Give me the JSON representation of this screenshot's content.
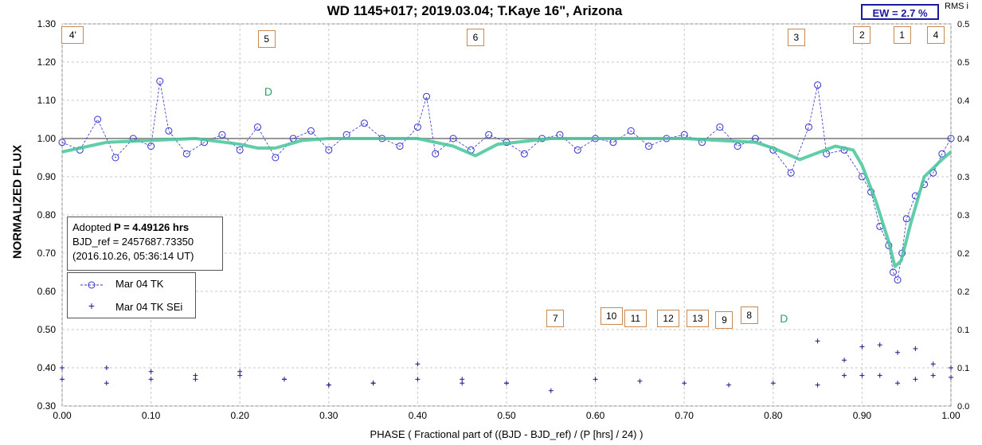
{
  "chart_data": {
    "type": "scatter",
    "title": "WD 1145+017; 2019.03.04; T.Kaye 16\", Arizona",
    "xlabel": "PHASE ( Fractional part of ((BJD - BJD_ref) / (P [hrs] / 24) )",
    "ylabel": "NORMALIZED FLUX",
    "xlim": [
      0.0,
      1.0
    ],
    "ylim": [
      0.3,
      1.3
    ],
    "y2label": "RMS i",
    "y2lim": [
      0.0,
      0.5
    ],
    "x_ticks": [
      "0.00",
      "0.10",
      "0.20",
      "0.30",
      "0.40",
      "0.50",
      "0.60",
      "0.70",
      "0.80",
      "0.90",
      "1.00"
    ],
    "y_ticks": [
      "0.30",
      "0.40",
      "0.50",
      "0.60",
      "0.70",
      "0.80",
      "0.90",
      "1.00",
      "1.10",
      "1.20",
      "1.30"
    ],
    "y2_ticks": [
      "0.0",
      "0.1",
      "0.1",
      "0.2",
      "0.2",
      "0.3",
      "0.3",
      "0.4",
      "0.4",
      "0.5",
      "0.5"
    ],
    "grid": true,
    "series": [
      {
        "name": "Mar 04 TK",
        "marker": "circle",
        "color": "#3333cc",
        "x": [
          0.0,
          0.02,
          0.04,
          0.06,
          0.08,
          0.1,
          0.11,
          0.12,
          0.14,
          0.16,
          0.18,
          0.2,
          0.22,
          0.24,
          0.26,
          0.28,
          0.3,
          0.32,
          0.34,
          0.36,
          0.38,
          0.4,
          0.41,
          0.42,
          0.44,
          0.46,
          0.48,
          0.5,
          0.52,
          0.54,
          0.56,
          0.58,
          0.6,
          0.62,
          0.64,
          0.66,
          0.68,
          0.7,
          0.72,
          0.74,
          0.76,
          0.78,
          0.8,
          0.82,
          0.84,
          0.85,
          0.86,
          0.88,
          0.9,
          0.91,
          0.92,
          0.93,
          0.935,
          0.94,
          0.945,
          0.95,
          0.96,
          0.97,
          0.98,
          0.99,
          1.0
        ],
        "y": [
          0.99,
          0.97,
          1.05,
          0.95,
          1.0,
          0.98,
          1.15,
          1.02,
          0.96,
          0.99,
          1.01,
          0.97,
          1.03,
          0.95,
          1.0,
          1.02,
          0.97,
          1.01,
          1.04,
          1.0,
          0.98,
          1.03,
          1.11,
          0.96,
          1.0,
          0.97,
          1.01,
          0.99,
          0.96,
          1.0,
          1.01,
          0.97,
          1.0,
          0.99,
          1.02,
          0.98,
          1.0,
          1.01,
          0.99,
          1.03,
          0.98,
          1.0,
          0.97,
          0.91,
          1.03,
          1.14,
          0.96,
          0.97,
          0.9,
          0.86,
          0.77,
          0.72,
          0.65,
          0.63,
          0.7,
          0.79,
          0.85,
          0.88,
          0.91,
          0.96,
          1.0
        ]
      },
      {
        "name": "Mar 04 TK SEi",
        "marker": "plus",
        "color": "#1a1a80",
        "x": [
          0.0,
          0.05,
          0.1,
          0.15,
          0.2,
          0.25,
          0.3,
          0.35,
          0.4,
          0.45,
          0.5,
          0.55,
          0.6,
          0.65,
          0.7,
          0.75,
          0.8,
          0.85,
          0.88,
          0.9,
          0.92,
          0.94,
          0.96,
          0.98,
          1.0
        ],
        "y": [
          0.37,
          0.36,
          0.37,
          0.37,
          0.38,
          0.37,
          0.355,
          0.36,
          0.37,
          0.36,
          0.36,
          0.34,
          0.37,
          0.365,
          0.36,
          0.355,
          0.36,
          0.355,
          0.38,
          0.38,
          0.38,
          0.36,
          0.37,
          0.38,
          0.375
        ]
      },
      {
        "name": "",
        "marker": "plus",
        "color": "#1a1a80",
        "x": [
          0.0,
          0.05,
          0.1,
          0.15,
          0.2,
          0.25,
          0.3,
          0.35,
          0.4,
          0.45,
          0.5,
          0.85,
          0.88,
          0.9,
          0.92,
          0.94,
          0.96,
          0.98,
          1.0
        ],
        "y": [
          0.4,
          0.4,
          0.39,
          0.38,
          0.39,
          0.37,
          0.355,
          0.36,
          0.41,
          0.37,
          0.36,
          0.47,
          0.42,
          0.455,
          0.46,
          0.44,
          0.45,
          0.41,
          0.4
        ]
      },
      {
        "name": "",
        "type": "line",
        "color": "#45c49a",
        "x": [
          0.0,
          0.05,
          0.1,
          0.15,
          0.2,
          0.22,
          0.24,
          0.27,
          0.3,
          0.4,
          0.44,
          0.465,
          0.49,
          0.55,
          0.6,
          0.7,
          0.78,
          0.8,
          0.83,
          0.87,
          0.89,
          0.9,
          0.915,
          0.93,
          0.937,
          0.944,
          0.955,
          0.97,
          0.99,
          1.0
        ],
        "y": [
          0.965,
          0.99,
          0.995,
          1.0,
          0.985,
          0.975,
          0.975,
          0.995,
          1.0,
          1.0,
          0.98,
          0.955,
          0.985,
          1.0,
          1.0,
          1.0,
          0.99,
          0.975,
          0.945,
          0.98,
          0.97,
          0.93,
          0.84,
          0.73,
          0.665,
          0.68,
          0.78,
          0.9,
          0.945,
          0.965
        ]
      }
    ],
    "annotations": {
      "tags": [
        {
          "label": "4'",
          "x": 0.012,
          "y": 1.27
        },
        {
          "label": "5",
          "x": 0.23,
          "y": 1.26
        },
        {
          "label": "6",
          "x": 0.465,
          "y": 1.265
        },
        {
          "label": "3",
          "x": 0.826,
          "y": 1.265
        },
        {
          "label": "2",
          "x": 0.9,
          "y": 1.27
        },
        {
          "label": "1",
          "x": 0.945,
          "y": 1.27
        },
        {
          "label": "4",
          "x": 0.983,
          "y": 1.27
        },
        {
          "label": "7",
          "x": 0.555,
          "y": 0.53
        },
        {
          "label": "10",
          "x": 0.618,
          "y": 0.535
        },
        {
          "label": "11",
          "x": 0.645,
          "y": 0.53
        },
        {
          "label": "12",
          "x": 0.682,
          "y": 0.53
        },
        {
          "label": "13",
          "x": 0.715,
          "y": 0.53
        },
        {
          "label": "9",
          "x": 0.745,
          "y": 0.525
        },
        {
          "label": "8",
          "x": 0.773,
          "y": 0.537
        }
      ],
      "d_labels": [
        {
          "label": "D",
          "x": 0.232,
          "y": 1.12
        },
        {
          "label": "D",
          "x": 0.812,
          "y": 0.527
        }
      ]
    },
    "ew_label": "EW =  2.7 %",
    "info_box": {
      "line1_prefix": "Adopted ",
      "line1_bold": "P = 4.49126 hrs",
      "line2": "BJD_ref = 2457687.73350",
      "line3": "(2016.10.26, 05:36:14 UT)"
    },
    "legend": {
      "entry1": "Mar 04 TK",
      "entry2": "Mar 04 TK SEi"
    }
  }
}
